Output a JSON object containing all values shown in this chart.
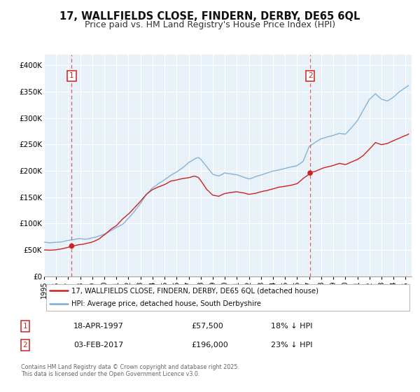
{
  "title": "17, WALLFIELDS CLOSE, FINDERN, DERBY, DE65 6QL",
  "subtitle": "Price paid vs. HM Land Registry's House Price Index (HPI)",
  "title_fontsize": 10.5,
  "subtitle_fontsize": 9,
  "background_color": "#ffffff",
  "plot_bg_color": "#e8f0f8",
  "grid_color": "#ffffff",
  "hpi_color": "#7aadd4",
  "price_color": "#cc2222",
  "marker_color": "#cc2222",
  "vline_color": "#dd4444",
  "label_color": "#cc2222",
  "ylim": [
    0,
    420000
  ],
  "xlim_start": 1995.0,
  "xlim_end": 2025.5,
  "ytick_vals": [
    0,
    50000,
    100000,
    150000,
    200000,
    250000,
    300000,
    350000,
    400000
  ],
  "ytick_labels": [
    "£0",
    "£50K",
    "£100K",
    "£150K",
    "£200K",
    "£250K",
    "£300K",
    "£350K",
    "£400K"
  ],
  "xtick_vals": [
    1995,
    1996,
    1997,
    1998,
    1999,
    2000,
    2001,
    2002,
    2003,
    2004,
    2005,
    2006,
    2007,
    2008,
    2009,
    2010,
    2011,
    2012,
    2013,
    2014,
    2015,
    2016,
    2017,
    2018,
    2019,
    2020,
    2021,
    2022,
    2023,
    2024,
    2025
  ],
  "transaction1_date": 1997.29,
  "transaction1_price": 57500,
  "transaction2_date": 2017.08,
  "transaction2_price": 196000,
  "legend_line1": "17, WALLFIELDS CLOSE, FINDERN, DERBY, DE65 6QL (detached house)",
  "legend_line2": "HPI: Average price, detached house, South Derbyshire",
  "info1_date": "18-APR-1997",
  "info1_price": "£57,500",
  "info1_hpi": "18% ↓ HPI",
  "info2_date": "03-FEB-2017",
  "info2_price": "£196,000",
  "info2_hpi": "23% ↓ HPI",
  "footnote": "Contains HM Land Registry data © Crown copyright and database right 2025.\nThis data is licensed under the Open Government Licence v3.0."
}
